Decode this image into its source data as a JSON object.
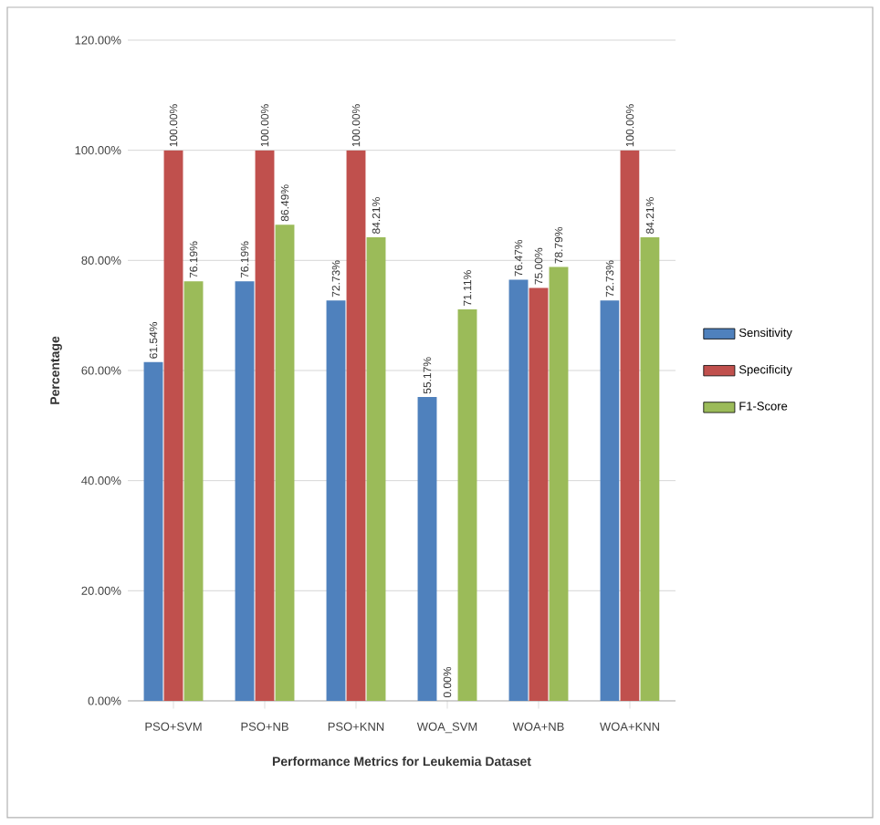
{
  "chart_data": {
    "type": "bar",
    "xlabel": "Performance Metrics for Leukemia Dataset",
    "ylabel": "Percentage",
    "categories": [
      "PSO+SVM",
      "PSO+NB",
      "PSO+KNN",
      "WOA_SVM",
      "WOA+NB",
      "WOA+KNN"
    ],
    "series": [
      {
        "name": "Sensitivity",
        "color": "#4f81bd",
        "values": [
          61.54,
          76.19,
          72.73,
          55.17,
          76.47,
          72.73
        ],
        "value_labels": [
          "61.54%",
          "76.19%",
          "72.73%",
          "55.17%",
          "76.47%",
          "72.73%"
        ]
      },
      {
        "name": "Specificity",
        "color": "#c0504d",
        "values": [
          100,
          100,
          100,
          0,
          75,
          100
        ],
        "value_labels": [
          "100.00%",
          "100.00%",
          "100.00%",
          "0.00%",
          "75.00%",
          "100.00%"
        ]
      },
      {
        "name": "F1-Score",
        "color": "#9bbb59",
        "values": [
          76.19,
          86.49,
          84.21,
          71.11,
          78.79,
          84.21
        ],
        "value_labels": [
          "76.19%",
          "86.49%",
          "84.21%",
          "71.11%",
          "78.79%",
          "84.21%"
        ]
      }
    ],
    "ylim": [
      0,
      120
    ],
    "yticks": [
      {
        "value": 0,
        "label": "0.00%"
      },
      {
        "value": 20,
        "label": "20.00%"
      },
      {
        "value": 40,
        "label": "40.00%"
      },
      {
        "value": 60,
        "label": "60.00%"
      },
      {
        "value": 80,
        "label": "80.00%"
      },
      {
        "value": 100,
        "label": "100.00%"
      },
      {
        "value": 120,
        "label": "120.00%"
      }
    ],
    "grid": "y",
    "legend": "right"
  }
}
